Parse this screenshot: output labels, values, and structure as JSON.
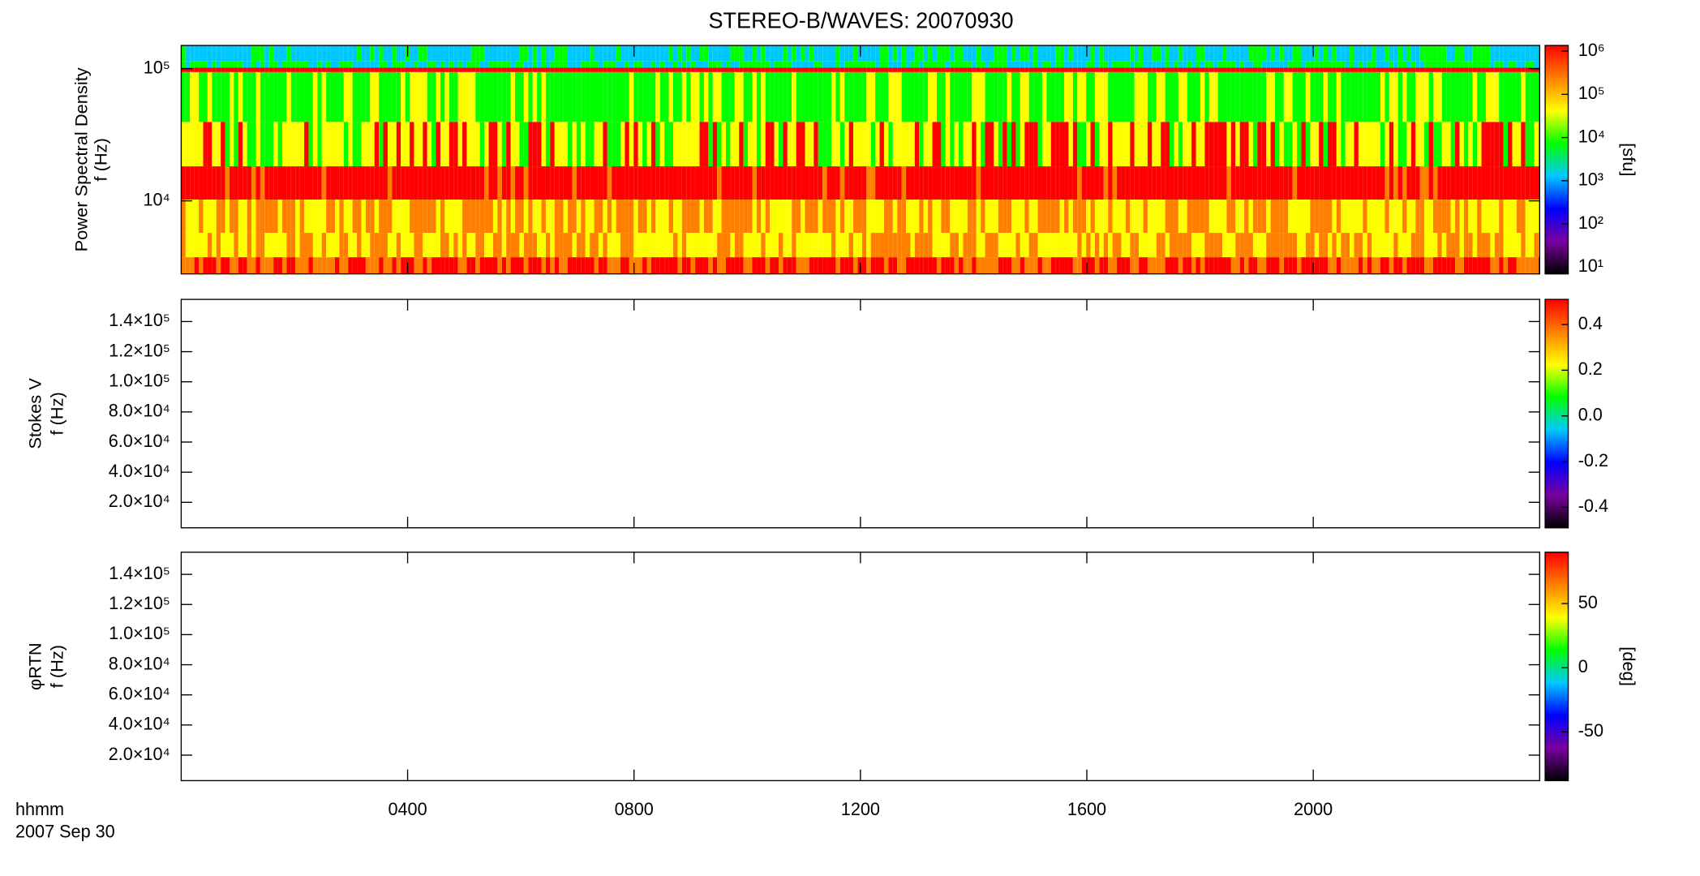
{
  "title": "STEREO-B/WAVES: 20070930",
  "x_axis": {
    "label": "hhmm",
    "date": "2007 Sep 30",
    "xlim": [
      0,
      24
    ],
    "xticks": [
      {
        "value": 4,
        "label": "0400"
      },
      {
        "value": 8,
        "label": "0800"
      },
      {
        "value": 12,
        "label": "1200"
      },
      {
        "value": 16,
        "label": "1600"
      },
      {
        "value": 20,
        "label": "2000"
      }
    ]
  },
  "chart_data": [
    {
      "type": "heatmap",
      "ylabel": [
        "Power Spectral Density",
        "f (Hz)"
      ],
      "ylog": true,
      "ylim": [
        2800,
        150000
      ],
      "yticks": [
        {
          "value": 10000,
          "label": "10⁴"
        },
        {
          "value": 100000,
          "label": "10⁵"
        }
      ],
      "colormap": [
        "#000000",
        "#7a00a0",
        "#0000ff",
        "#00c8ff",
        "#00ff00",
        "#ffff00",
        "#ff8000",
        "#ff0000"
      ],
      "colorbar": {
        "label": "[sfu]",
        "log": true,
        "clim": [
          7,
          1350000
        ],
        "ticks": [
          {
            "value": 10,
            "label": "10¹"
          },
          {
            "value": 100,
            "label": "10²"
          },
          {
            "value": 1000,
            "label": "10³"
          },
          {
            "value": 10000,
            "label": "10⁴"
          },
          {
            "value": 100000,
            "label": "10⁵"
          },
          {
            "value": 1000000,
            "label": "10⁶"
          }
        ]
      }
    },
    {
      "type": "empty",
      "ylabel": [
        "Stokes V",
        "f (Hz)"
      ],
      "ylog": false,
      "ylim": [
        3070,
        154700
      ],
      "yticks": [
        {
          "value": 20000,
          "label": "2.0×10⁴"
        },
        {
          "value": 40000,
          "label": "4.0×10⁴"
        },
        {
          "value": 60000,
          "label": "6.0×10⁴"
        },
        {
          "value": 80000,
          "label": "8.0×10⁴"
        },
        {
          "value": 100000,
          "label": "1.0×10⁵"
        },
        {
          "value": 120000,
          "label": "1.2×10⁵"
        },
        {
          "value": 140000,
          "label": "1.4×10⁵"
        }
      ],
      "colormap": [
        "#000000",
        "#7a00a0",
        "#0000ff",
        "#00c8ff",
        "#00ff00",
        "#ffff00",
        "#ff8000",
        "#ff0000"
      ],
      "colorbar": {
        "label": "",
        "log": false,
        "clim": [
          -0.49,
          0.51
        ],
        "ticks": [
          -0.4,
          -0.2,
          {
            "value": 0,
            "label": "0.0"
          },
          0.2,
          0.4
        ]
      }
    },
    {
      "type": "empty",
      "ylabel": [
        "φRTN",
        "f (Hz)"
      ],
      "ylog": false,
      "ylim": [
        3070,
        154700
      ],
      "yticks": [
        {
          "value": 20000,
          "label": "2.0×10⁴"
        },
        {
          "value": 40000,
          "label": "4.0×10⁴"
        },
        {
          "value": 60000,
          "label": "6.0×10⁴"
        },
        {
          "value": 80000,
          "label": "8.0×10⁴"
        },
        {
          "value": 100000,
          "label": "1.0×10⁵"
        },
        {
          "value": 120000,
          "label": "1.2×10⁵"
        },
        {
          "value": 140000,
          "label": "1.4×10⁵"
        }
      ],
      "colormap": [
        "#000000",
        "#7a00a0",
        "#0000ff",
        "#00c8ff",
        "#00ff00",
        "#ffff00",
        "#ff8000",
        "#ff0000"
      ],
      "colorbar": {
        "label": "[deg]",
        "log": false,
        "clim": [
          -88,
          90
        ],
        "ticks": [
          -50,
          0,
          50
        ]
      }
    }
  ]
}
